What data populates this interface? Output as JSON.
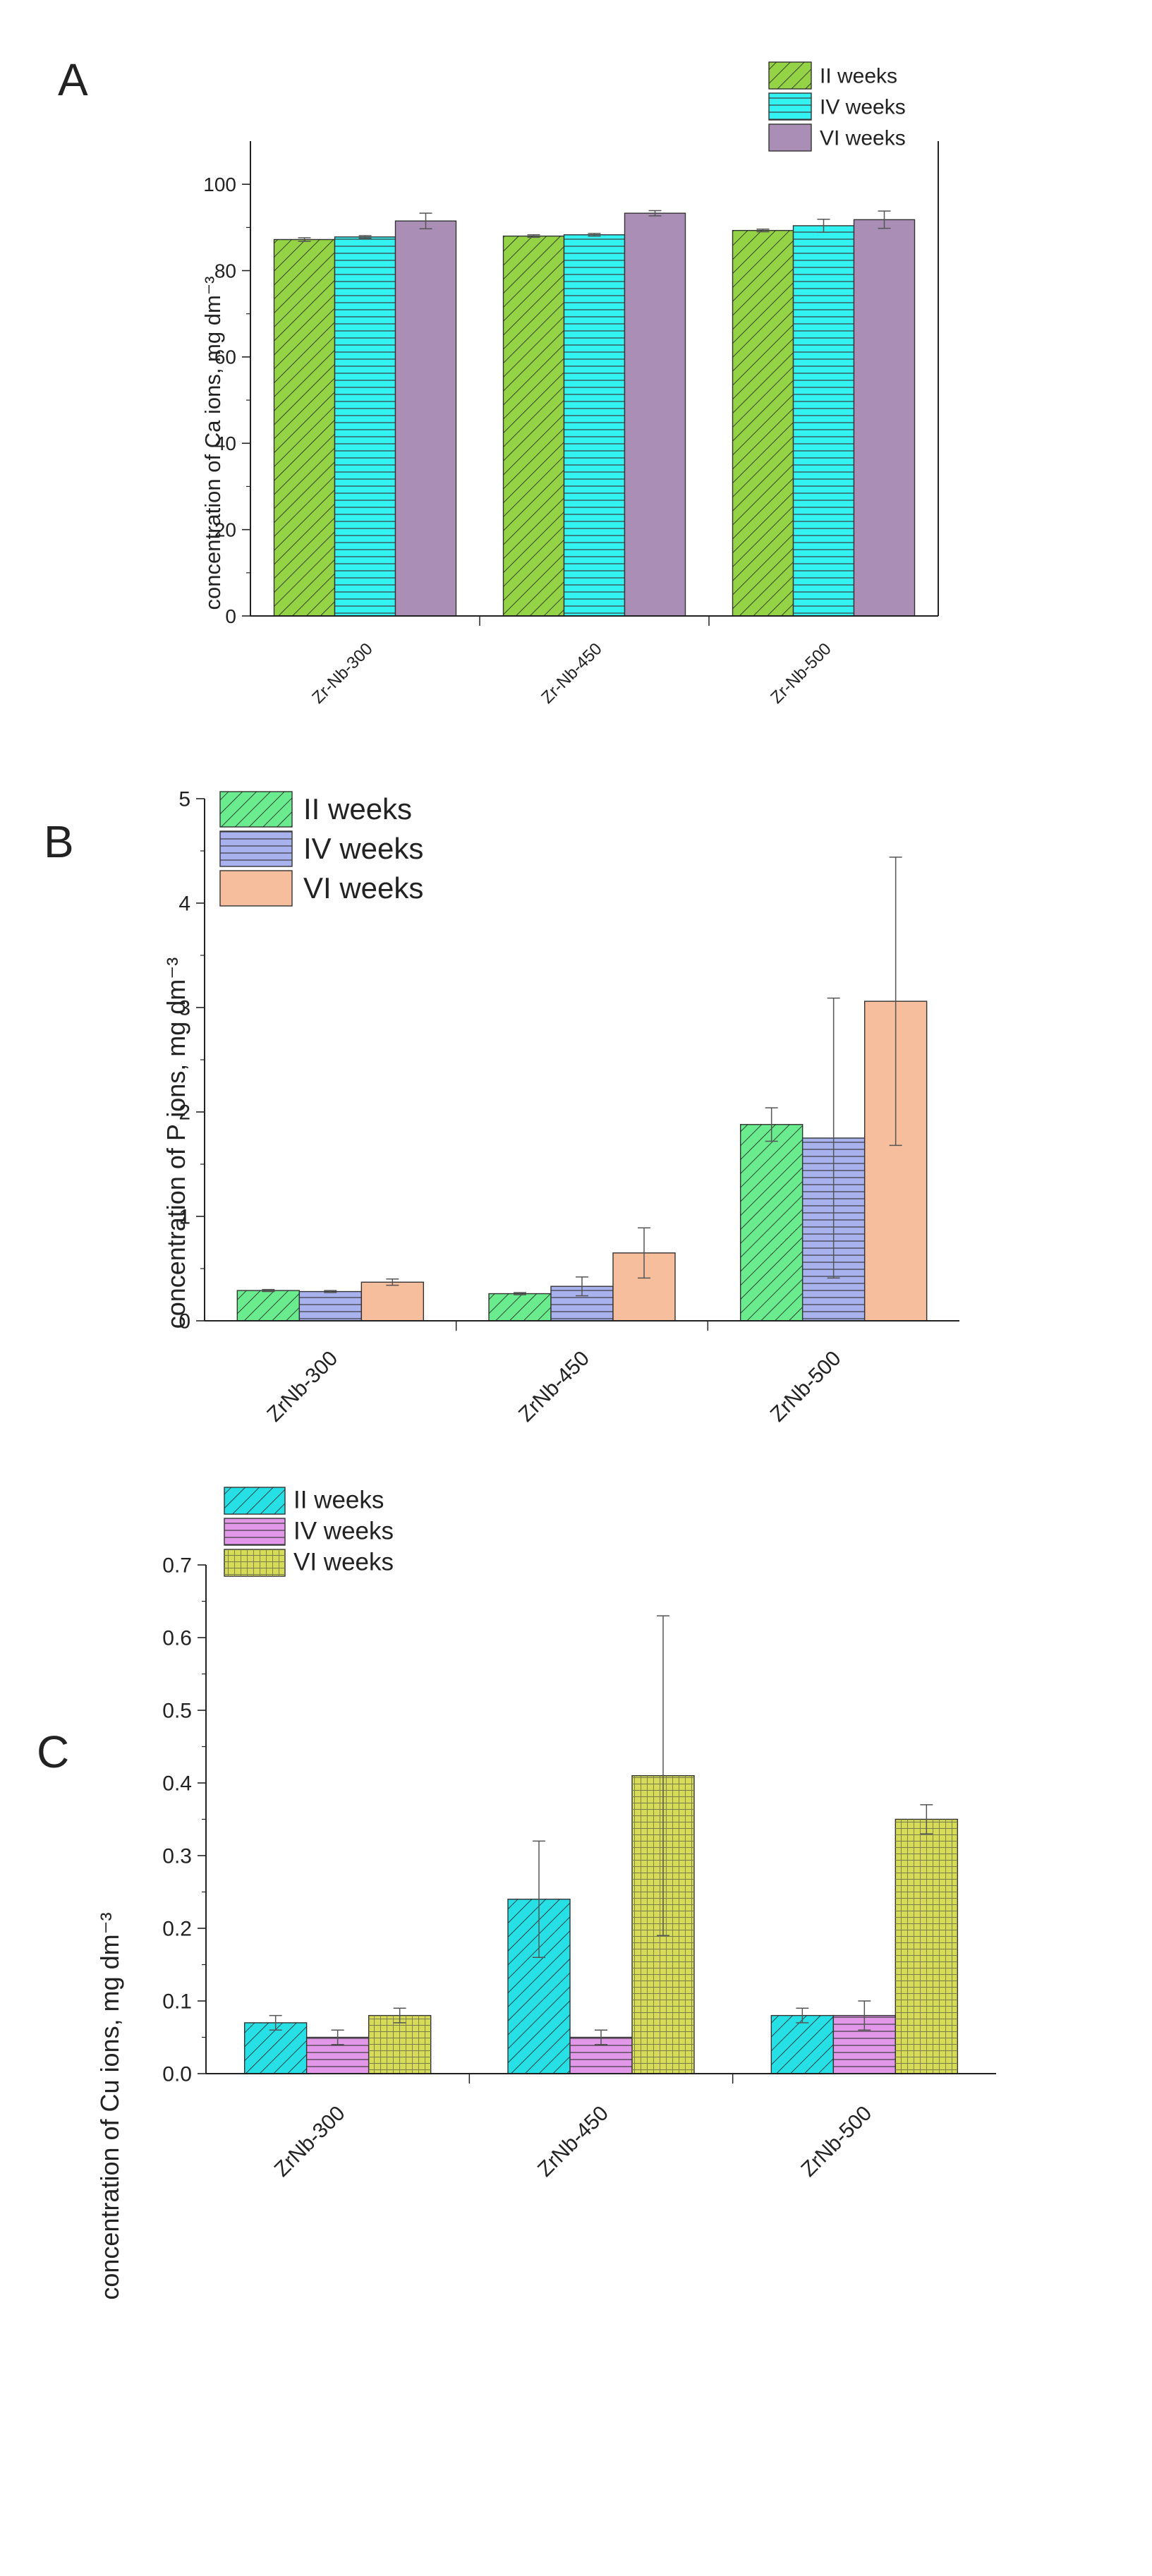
{
  "chart_data": [
    {
      "panel": "A",
      "type": "bar",
      "categories": [
        "Zr-Nb-300",
        "Zr-Nb-450",
        "Zr-Nb-500"
      ],
      "series": [
        {
          "name": "II weeks",
          "values": [
            87.2,
            88.0,
            89.3
          ],
          "errors": [
            0.4,
            0.3,
            0.3
          ],
          "color": "#94D345",
          "pattern": "diagonal"
        },
        {
          "name": "IV weeks",
          "values": [
            87.8,
            88.3,
            90.4
          ],
          "errors": [
            0.3,
            0.3,
            1.5
          ],
          "color": "#33F2F2",
          "pattern": "horizontal"
        },
        {
          "name": "VI weeks",
          "values": [
            91.5,
            93.3,
            91.8
          ],
          "errors": [
            1.8,
            0.6,
            2.0
          ],
          "color": "#AA8EB6",
          "pattern": "none"
        }
      ],
      "ylabel": "concentration of Ca ions, mg dm⁻³",
      "ylim": [
        0,
        110
      ],
      "yticks": [
        "0",
        "20",
        "40",
        "60",
        "80",
        "100"
      ],
      "legend_position": "top-right",
      "panel_label": "A"
    },
    {
      "panel": "B",
      "type": "bar",
      "categories": [
        "ZrNb-300",
        "ZrNb-450",
        "ZrNb-500"
      ],
      "series": [
        {
          "name": "II weeks",
          "values": [
            0.29,
            0.26,
            1.88
          ],
          "errors": [
            0.01,
            0.01,
            0.16
          ],
          "color": "#6AEB8E",
          "pattern": "diagonal"
        },
        {
          "name": "IV weeks",
          "values": [
            0.28,
            0.33,
            1.75
          ],
          "errors": [
            0.01,
            0.09,
            1.34
          ],
          "color": "#A8B2EE",
          "pattern": "horizontal"
        },
        {
          "name": "VI weeks",
          "values": [
            0.37,
            0.65,
            3.06
          ],
          "errors": [
            0.03,
            0.24,
            1.38
          ],
          "color": "#F6BE9C",
          "pattern": "none"
        }
      ],
      "ylabel": "concentration of P ions, mg dm⁻³",
      "ylim": [
        0,
        5
      ],
      "yticks": [
        "0",
        "1",
        "2",
        "3",
        "4",
        "5"
      ],
      "legend_position": "top-left",
      "panel_label": "B"
    },
    {
      "panel": "C",
      "type": "bar",
      "categories": [
        "ZrNb-300",
        "ZrNb-450",
        "ZrNb-500"
      ],
      "series": [
        {
          "name": "II weeks",
          "values": [
            0.07,
            0.24,
            0.08
          ],
          "errors": [
            0.01,
            0.08,
            0.01
          ],
          "color": "#27E0E6",
          "pattern": "diagonal"
        },
        {
          "name": "IV weeks",
          "values": [
            0.05,
            0.05,
            0.08
          ],
          "errors": [
            0.01,
            0.01,
            0.02
          ],
          "color": "#E397E8",
          "pattern": "horizontal"
        },
        {
          "name": "VI weeks",
          "values": [
            0.08,
            0.41,
            0.35
          ],
          "errors": [
            0.01,
            0.22,
            0.02
          ],
          "color": "#D6DC58",
          "pattern": "grid"
        }
      ],
      "ylabel": "concentration of Cu ions, mg dm⁻³",
      "ylim": [
        0,
        0.7
      ],
      "yticks": [
        "0.0",
        "0.1",
        "0.2",
        "0.3",
        "0.4",
        "0.5",
        "0.6",
        "0.7"
      ],
      "legend_position": "top-left",
      "panel_label": "C"
    }
  ]
}
